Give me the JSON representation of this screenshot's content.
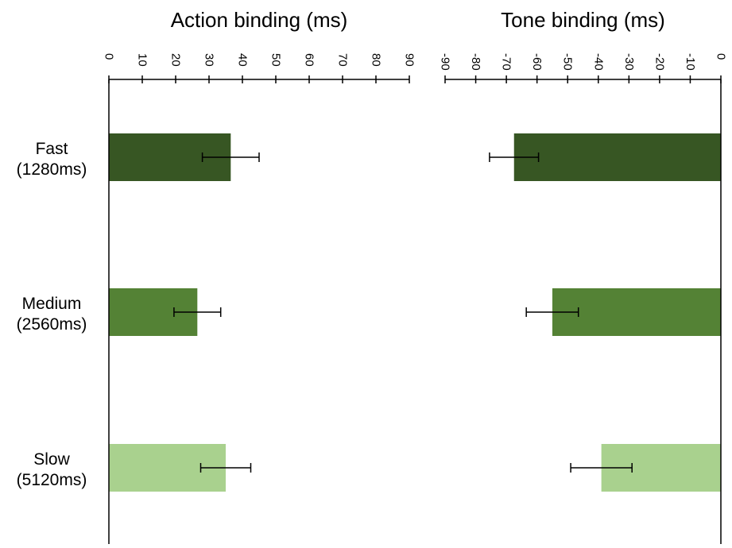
{
  "chart_data": [
    {
      "type": "bar",
      "orientation": "horizontal",
      "title": "Action binding (ms)",
      "categories": [
        [
          "Fast",
          "(1280ms)"
        ],
        [
          "Medium",
          "(2560ms)"
        ],
        [
          "Slow",
          "(5120ms)"
        ]
      ],
      "series": [
        {
          "values": [
            36.5,
            26.5,
            35
          ],
          "errors": [
            8.5,
            7,
            7.5
          ],
          "colors": [
            "#375623",
            "#548235",
            "#a9d18e"
          ]
        }
      ],
      "xlim": [
        0,
        90
      ],
      "ticks": [
        0,
        10,
        20,
        30,
        40,
        50,
        60,
        70,
        80,
        90
      ],
      "tick_labels": [
        "0",
        "10",
        "20",
        "30",
        "40",
        "50",
        "60",
        "70",
        "80",
        "90"
      ],
      "axis_position": "top",
      "grid": false
    },
    {
      "type": "bar",
      "orientation": "horizontal",
      "title": "Tone binding (ms)",
      "categories": [
        [
          "Fast",
          "(1280ms)"
        ],
        [
          "Medium",
          "(2560ms)"
        ],
        [
          "Slow",
          "(5120ms)"
        ]
      ],
      "series": [
        {
          "values": [
            -67.5,
            -55,
            -39
          ],
          "errors": [
            8,
            8.5,
            10
          ],
          "colors": [
            "#375623",
            "#548235",
            "#a9d18e"
          ]
        }
      ],
      "xlim": [
        -90,
        0
      ],
      "ticks": [
        -90,
        -80,
        -70,
        -60,
        -50,
        -40,
        -30,
        -20,
        -10,
        0
      ],
      "tick_labels": [
        "-90",
        "-80",
        "-70",
        "-60",
        "-50",
        "-40",
        "-30",
        "-20",
        "-10",
        "0"
      ],
      "axis_position": "top",
      "grid": false
    }
  ]
}
